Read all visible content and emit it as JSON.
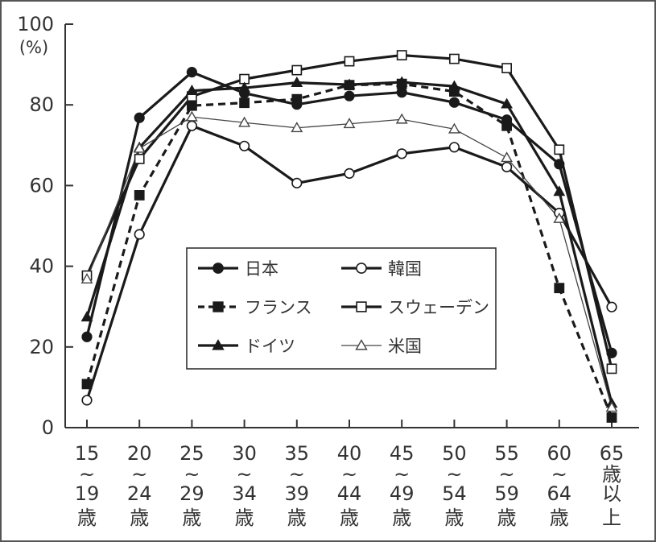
{
  "chart_data": {
    "type": "line",
    "ylabel": "(%)",
    "ylim": [
      0,
      100
    ],
    "yticks": [
      0,
      20,
      40,
      60,
      80,
      100
    ],
    "categories": [
      [
        "15",
        "~",
        "19",
        "歳"
      ],
      [
        "20",
        "~",
        "24",
        "歳"
      ],
      [
        "25",
        "~",
        "29",
        "歳"
      ],
      [
        "30",
        "~",
        "34",
        "歳"
      ],
      [
        "35",
        "~",
        "39",
        "歳"
      ],
      [
        "40",
        "~",
        "44",
        "歳"
      ],
      [
        "45",
        "~",
        "49",
        "歳"
      ],
      [
        "50",
        "~",
        "54",
        "歳"
      ],
      [
        "55",
        "~",
        "59",
        "歳"
      ],
      [
        "60",
        "~",
        "64",
        "歳"
      ],
      [
        "65",
        "歳",
        "以",
        "上"
      ]
    ],
    "series": [
      {
        "name": "日本",
        "marker": "filled-circle",
        "line": "solid-thick",
        "color": "#222222",
        "values": [
          22.5,
          76.8,
          88.1,
          82.9,
          80.1,
          82.2,
          83.1,
          80.6,
          76.3,
          65.3,
          18.5
        ]
      },
      {
        "name": "韓国",
        "marker": "open-circle",
        "line": "solid-thick",
        "color": "#222222",
        "values": [
          6.8,
          47.9,
          74.8,
          69.8,
          60.6,
          63.0,
          67.9,
          69.5,
          64.6,
          53.2,
          29.9
        ]
      },
      {
        "name": "フランス",
        "marker": "filled-square",
        "line": "dashed-thick",
        "color": "#222222",
        "values": [
          10.8,
          57.6,
          79.8,
          80.5,
          81.4,
          84.9,
          85.2,
          83.3,
          74.8,
          34.6,
          2.5
        ]
      },
      {
        "name": "スウェーデン",
        "marker": "open-square",
        "line": "solid-thick",
        "color": "#222222",
        "values": [
          37.7,
          66.6,
          82.1,
          86.4,
          88.6,
          90.8,
          92.3,
          91.4,
          89.1,
          68.9,
          14.6
        ]
      },
      {
        "name": "ドイツ",
        "marker": "filled-triangle",
        "line": "solid-thick",
        "color": "#222222",
        "values": [
          27.4,
          69.4,
          83.5,
          84.2,
          85.5,
          85.0,
          85.6,
          84.6,
          80.2,
          58.5,
          6.0
        ]
      },
      {
        "name": "米国",
        "marker": "open-triangle",
        "line": "solid-thin",
        "color": "#444444",
        "values": [
          36.8,
          69.2,
          77.0,
          75.6,
          74.3,
          75.3,
          76.4,
          74.0,
          66.9,
          51.8,
          5.0
        ]
      }
    ],
    "legend": {
      "placement": "center",
      "layout": [
        [
          "日本",
          "韓国"
        ],
        [
          "フランス",
          "スウェーデン"
        ],
        [
          "ドイツ",
          "米国"
        ]
      ]
    }
  }
}
